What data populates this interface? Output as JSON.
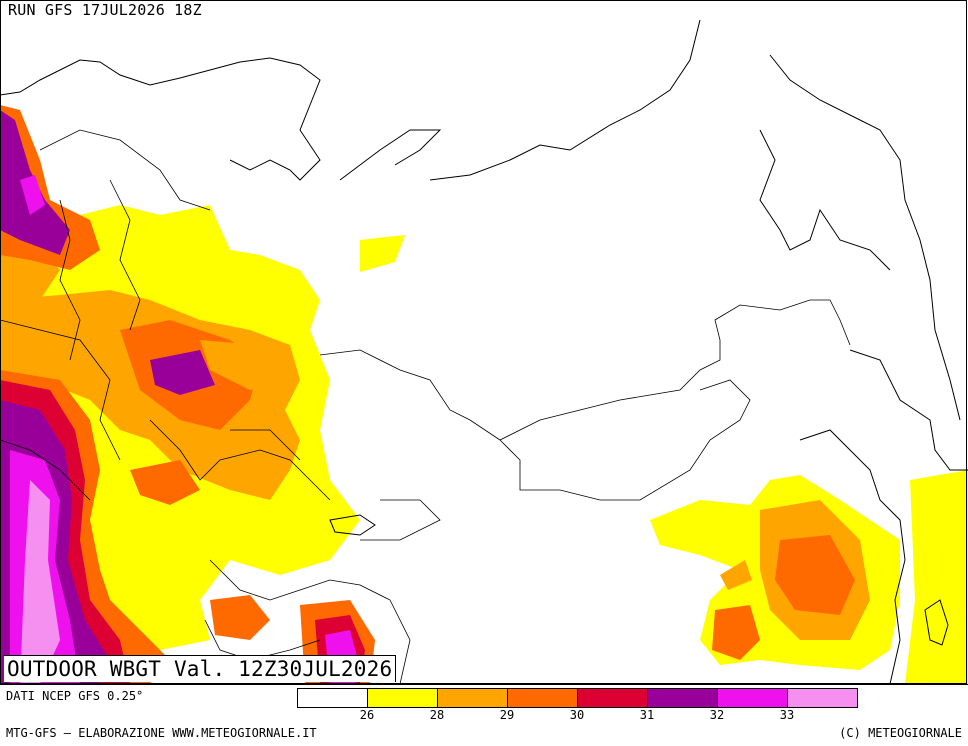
{
  "header": {
    "run": "RUN GFS 17JUL2026 18Z"
  },
  "title": "OUTDOOR WBGT Val. 12Z30JUL2026",
  "source": "DATI NCEP GFS 0.25°",
  "footer": {
    "left": "MTG-GFS — ELABORAZIONE WWW.METEOGIORNALE.IT",
    "right": "(C) METEOGIORNALE"
  },
  "legend": {
    "colors": [
      "#ffffff",
      "#ffff00",
      "#ffa500",
      "#ff6a00",
      "#dd0033",
      "#990099",
      "#ee11ee",
      "#f590f0"
    ],
    "ticks": [
      "26",
      "28",
      "29",
      "30",
      "31",
      "32",
      "33"
    ]
  },
  "colors": {
    "coast": "#000000",
    "border": "#000000",
    "frame": "#000000"
  }
}
